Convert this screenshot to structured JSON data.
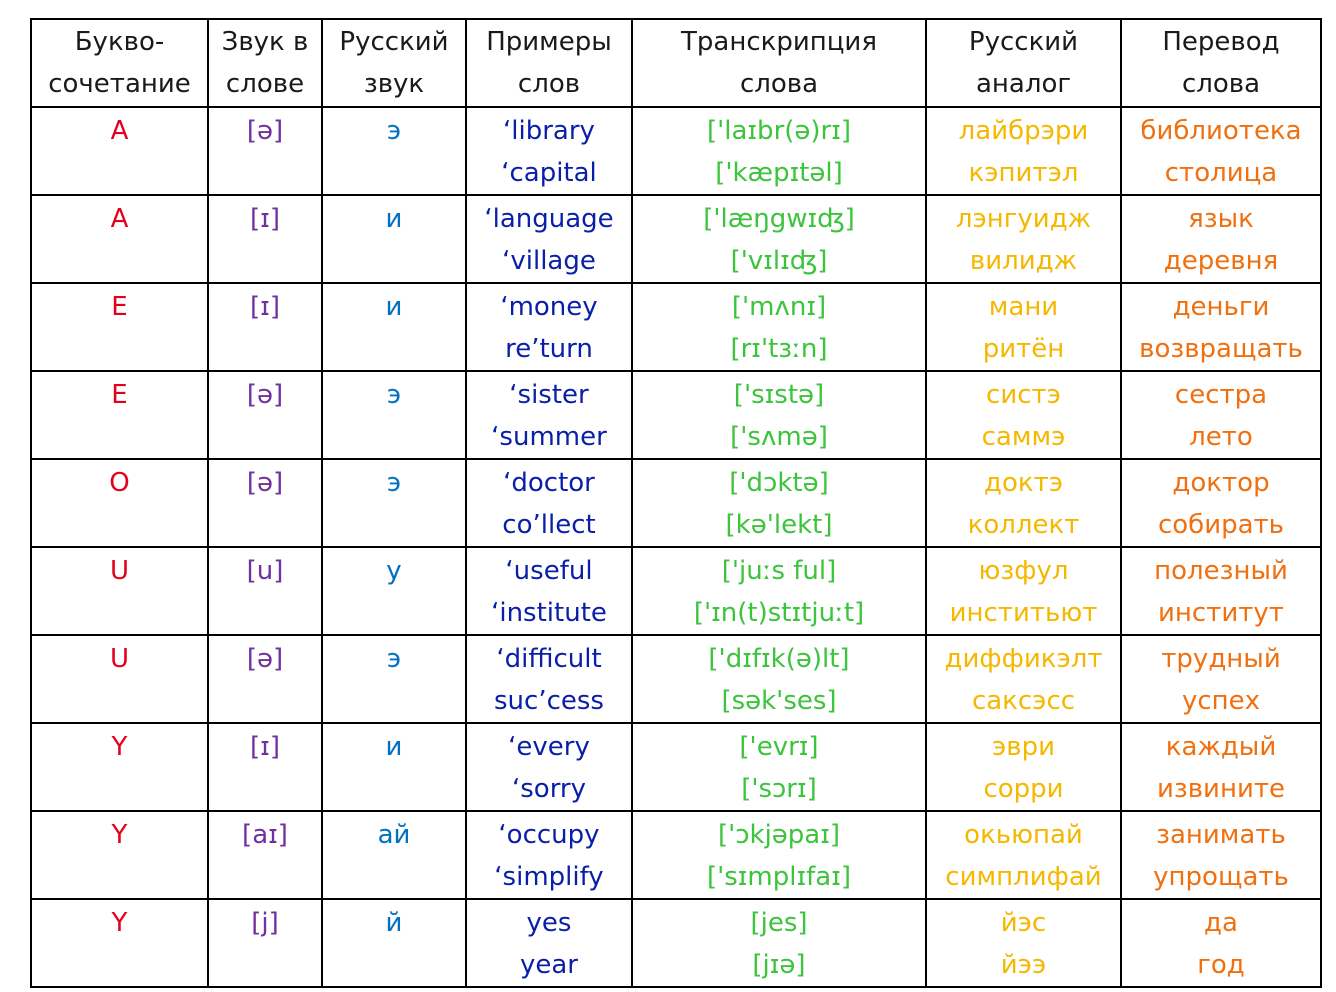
{
  "colors": {
    "letter": "#e3001b",
    "sound": "#7030a0",
    "russian_sound": "#0070c0",
    "examples": "#0a1fa8",
    "transcription": "#3cc43c",
    "analog": "#f5b800",
    "translation": "#f07010"
  },
  "headers": [
    [
      "Букво-",
      "сочетание"
    ],
    [
      "Звук в",
      "слове"
    ],
    [
      "Русский",
      "звук"
    ],
    [
      "Примеры",
      "слов"
    ],
    [
      "Транскрипция",
      "слова"
    ],
    [
      "Русский",
      "аналог"
    ],
    [
      "Перевод",
      "слова"
    ]
  ],
  "rows": [
    {
      "letter": "A",
      "sound": "[ə]",
      "ru_sound": "э",
      "examples": [
        "‘library",
        "‘capital"
      ],
      "transcription": [
        "['laɪbr(ə)rɪ]",
        "['kæpɪtəl]"
      ],
      "analog": [
        "лайбрэри",
        "кэпитэл"
      ],
      "translation": [
        "библиотека",
        "столица"
      ]
    },
    {
      "letter": "A",
      "sound": "[ɪ]",
      "ru_sound": "и",
      "examples": [
        "‘language",
        "‘village"
      ],
      "transcription": [
        "['læŋgwɪʤ]",
        "['vɪlɪʤ]"
      ],
      "analog": [
        "лэнгуидж",
        "вилидж"
      ],
      "translation": [
        "язык",
        "деревня"
      ]
    },
    {
      "letter": "E",
      "sound": "[ɪ]",
      "ru_sound": "и",
      "examples": [
        "‘money",
        "re’turn"
      ],
      "transcription": [
        "['mʌnɪ]",
        "[rɪ'tɜːn]"
      ],
      "analog": [
        "мани",
        "ритён"
      ],
      "translation": [
        "деньги",
        "возвращать"
      ]
    },
    {
      "letter": "E",
      "sound": "[ə]",
      "ru_sound": "э",
      "examples": [
        "‘sister",
        "‘summer"
      ],
      "transcription": [
        "['sɪstə]",
        "['sʌmə]"
      ],
      "analog": [
        "систэ",
        "саммэ"
      ],
      "translation": [
        "сестра",
        "лето"
      ]
    },
    {
      "letter": "O",
      "sound": "[ə]",
      "ru_sound": "э",
      "examples": [
        "‘doctor",
        "co’llect"
      ],
      "transcription": [
        "['dɔktə]",
        "[kə'lekt]"
      ],
      "analog": [
        "доктэ",
        "коллект"
      ],
      "translation": [
        "доктор",
        "собирать"
      ]
    },
    {
      "letter": "U",
      "sound": "[u]",
      "ru_sound": "у",
      "examples": [
        "‘useful",
        "‘institute"
      ],
      "transcription": [
        "['juːs ful]",
        "['ɪn(t)stɪtjuːt]"
      ],
      "analog": [
        "юзфул",
        "инститьют"
      ],
      "translation": [
        "полезный",
        "институт"
      ]
    },
    {
      "letter": "U",
      "sound": "[ə]",
      "ru_sound": "э",
      "examples": [
        "‘difficult",
        "suc’cess"
      ],
      "transcription": [
        "['dɪfɪk(ə)lt]",
        "[sək'ses]"
      ],
      "analog": [
        "диффикэлт",
        "саксэсс"
      ],
      "translation": [
        "трудный",
        "успех"
      ]
    },
    {
      "letter": "Y",
      "sound": "[ɪ]",
      "ru_sound": "и",
      "examples": [
        "‘every",
        "‘sorry"
      ],
      "transcription": [
        "['evrɪ]",
        "['sɔrɪ]"
      ],
      "analog": [
        "эври",
        "сорри"
      ],
      "translation": [
        "каждый",
        "извините"
      ]
    },
    {
      "letter": "Y",
      "sound": "[aɪ]",
      "ru_sound": "ай",
      "examples": [
        "‘occupy",
        "‘simplify"
      ],
      "transcription": [
        "['ɔkjəpaɪ]",
        "['sɪmplɪfaɪ]"
      ],
      "analog": [
        "окьюпай",
        "симплифай"
      ],
      "translation": [
        "занимать",
        "упрощать"
      ]
    },
    {
      "letter": "Y",
      "sound": "[j]",
      "ru_sound": "й",
      "examples": [
        "yes",
        "year"
      ],
      "transcription": [
        "[jes]",
        "[jɪə]"
      ],
      "analog": [
        "йэс",
        "йээ"
      ],
      "translation": [
        "да",
        "год"
      ]
    }
  ]
}
